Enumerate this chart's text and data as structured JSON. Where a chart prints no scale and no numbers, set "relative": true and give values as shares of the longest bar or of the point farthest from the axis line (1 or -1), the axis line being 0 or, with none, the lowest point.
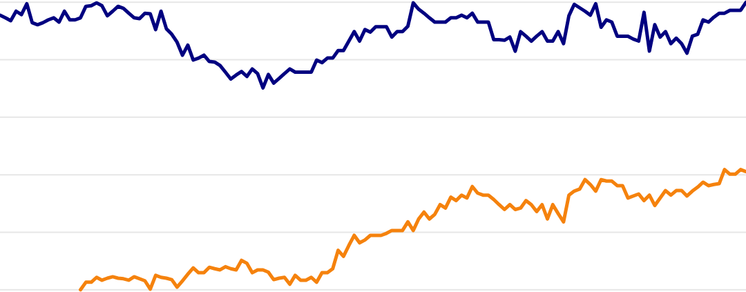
{
  "chart_data": {
    "type": "line",
    "relative": true,
    "grid": "y",
    "categories": [
      null,
      null,
      null,
      null,
      null,
      null,
      null,
      null,
      null,
      null,
      null,
      null,
      null,
      null,
      null,
      null,
      null,
      null,
      null,
      null,
      null,
      null,
      null,
      null,
      null,
      null,
      null,
      null,
      null,
      null,
      null,
      null,
      null,
      null,
      null,
      null,
      null,
      null,
      null,
      null,
      null,
      null,
      null,
      null,
      null,
      null,
      null,
      null,
      null,
      null,
      null,
      null,
      null,
      null,
      null,
      null,
      null,
      null,
      null,
      null,
      null,
      null,
      null,
      null,
      null,
      null,
      null,
      null,
      null,
      null,
      null,
      null,
      null,
      null,
      null,
      null,
      null,
      null,
      null,
      null,
      null,
      null,
      null,
      null,
      null,
      null,
      null,
      null,
      null,
      null,
      null,
      null,
      null,
      null,
      null,
      null,
      null,
      null,
      null,
      null,
      null,
      null,
      null,
      null,
      null,
      null,
      null,
      null,
      null,
      null,
      null,
      null,
      null,
      null,
      null,
      null,
      null,
      null,
      null,
      null,
      null,
      null,
      null,
      null,
      null,
      null,
      null,
      null,
      null,
      null,
      null,
      null,
      null,
      null,
      null,
      null,
      null,
      null,
      null,
      null
    ],
    "series": [
      {
        "color": "#000080",
        "values": [
          0.955,
          0.946,
          0.936,
          0.969,
          0.957,
          0.995,
          0.929,
          0.922,
          0.929,
          0.939,
          0.946,
          0.931,
          0.969,
          0.939,
          0.939,
          0.946,
          0.986,
          0.988,
          0.998,
          0.988,
          0.953,
          0.969,
          0.986,
          0.979,
          0.962,
          0.946,
          0.943,
          0.962,
          0.96,
          0.905,
          0.969,
          0.908,
          0.889,
          0.861,
          0.816,
          0.851,
          0.799,
          0.806,
          0.816,
          0.794,
          0.792,
          0.78,
          0.757,
          0.733,
          0.747,
          0.759,
          0.742,
          0.768,
          0.752,
          0.702,
          0.749,
          0.719,
          0.735,
          0.752,
          0.768,
          0.757,
          0.757,
          0.757,
          0.757,
          0.799,
          0.79,
          0.806,
          0.806,
          0.832,
          0.832,
          0.865,
          0.898,
          0.865,
          0.905,
          0.896,
          0.915,
          0.915,
          0.915,
          0.879,
          0.898,
          0.898,
          0.917,
          0.998,
          0.976,
          0.962,
          0.946,
          0.931,
          0.931,
          0.931,
          0.946,
          0.946,
          0.955,
          0.946,
          0.962,
          0.931,
          0.931,
          0.931,
          0.87,
          0.87,
          0.868,
          0.879,
          0.83,
          0.898,
          0.882,
          0.865,
          0.882,
          0.898,
          0.865,
          0.865,
          0.898,
          0.856,
          0.953,
          0.993,
          0.981,
          0.969,
          0.955,
          0.995,
          0.913,
          0.939,
          0.931,
          0.882,
          0.882,
          0.882,
          0.872,
          0.865,
          0.965,
          0.83,
          0.922,
          0.879,
          0.898,
          0.856,
          0.875,
          0.856,
          0.823,
          0.882,
          0.889,
          0.939,
          0.931,
          0.948,
          0.962,
          0.962,
          0.972,
          0.972,
          0.972,
          1.0
        ]
      },
      {
        "color": "#f5820d",
        "values": [
          null,
          null,
          null,
          null,
          null,
          null,
          null,
          null,
          null,
          null,
          null,
          null,
          null,
          null,
          null,
          0,
          0.026,
          0.026,
          0.043,
          0.033,
          0.04,
          0.045,
          0.04,
          0.038,
          0.033,
          0.045,
          0.038,
          0.031,
          0.002,
          0.05,
          0.043,
          0.04,
          0.035,
          0.009,
          0.031,
          0.054,
          0.076,
          0.059,
          0.059,
          0.078,
          0.073,
          0.069,
          0.08,
          0.073,
          0.069,
          0.102,
          0.092,
          0.059,
          0.069,
          0.069,
          0.061,
          0.035,
          0.04,
          0.043,
          0.019,
          0.05,
          0.033,
          0.033,
          0.043,
          0.026,
          0.059,
          0.059,
          0.073,
          0.137,
          0.116,
          0.154,
          0.189,
          0.163,
          0.173,
          0.189,
          0.189,
          0.189,
          0.196,
          0.206,
          0.206,
          0.206,
          0.236,
          0.206,
          0.246,
          0.27,
          0.246,
          0.262,
          0.296,
          0.284,
          0.322,
          0.31,
          0.329,
          0.319,
          0.359,
          0.336,
          0.329,
          0.329,
          0.314,
          0.296,
          0.279,
          0.296,
          0.279,
          0.284,
          0.31,
          0.296,
          0.272,
          0.296,
          0.246,
          0.296,
          0.265,
          0.236,
          0.329,
          0.343,
          0.35,
          0.383,
          0.366,
          0.343,
          0.383,
          0.378,
          0.378,
          0.362,
          0.362,
          0.319,
          0.326,
          0.333,
          0.31,
          0.329,
          0.293,
          0.319,
          0.345,
          0.329,
          0.345,
          0.345,
          0.326,
          0.343,
          0.357,
          0.374,
          0.362,
          0.366,
          0.369,
          0.418,
          0.402,
          0.402,
          0.418,
          0.411
        ]
      }
    ]
  }
}
